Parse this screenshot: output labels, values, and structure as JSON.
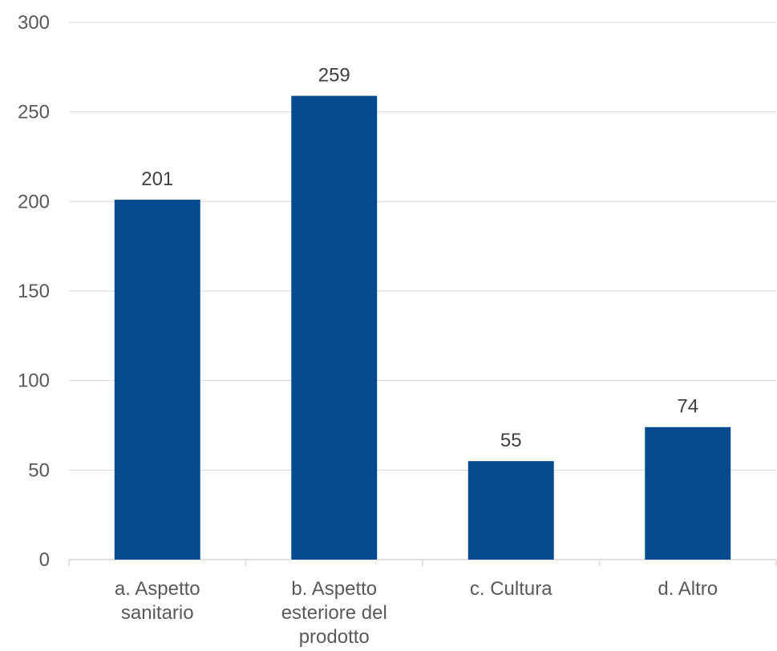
{
  "chart_data": {
    "type": "bar",
    "title": "",
    "xlabel": "",
    "ylabel": "",
    "categories": [
      "a.  Aspetto sanitario",
      "b.  Aspetto esteriore del prodotto",
      "c.  Cultura",
      "d.  Altro"
    ],
    "category_lines": [
      [
        "a.  Aspetto",
        "sanitario"
      ],
      [
        "b.  Aspetto",
        "esteriore del",
        "prodotto"
      ],
      [
        "c.  Cultura"
      ],
      [
        "d.  Altro"
      ]
    ],
    "values": [
      201,
      259,
      55,
      74
    ],
    "data_labels": [
      "201",
      "259",
      "55",
      "74"
    ],
    "ylim": [
      0,
      300
    ],
    "yticks": [
      0,
      50,
      100,
      150,
      200,
      250,
      300
    ],
    "ytick_labels": [
      "0",
      "50",
      "100",
      "150",
      "200",
      "250",
      "300"
    ],
    "grid": true,
    "legend": "none",
    "colors": {
      "bar": "#05498F",
      "grid": "#D9D9D9",
      "axis": "#D9D9D9",
      "tick_text": "#595959",
      "data_label_text": "#404040"
    }
  }
}
